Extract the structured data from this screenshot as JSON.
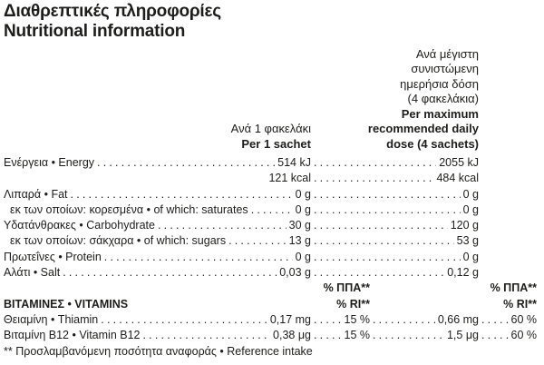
{
  "title": {
    "greek": "Διαθρεπτικές πληροφορίες",
    "english": "Nutritional information"
  },
  "columns": {
    "per_sachet": {
      "greek": "Ανά 1 φακελάκι",
      "english": "Per 1 sachet"
    },
    "per_max": {
      "greek_lines": [
        "Ανά μέγιστη",
        "συνιστώμενη",
        "ημερήσια δόση",
        "(4 φακελάκια)"
      ],
      "english_lines": [
        "Per maximum",
        "recommended daily",
        "dose (4 sachets)"
      ]
    }
  },
  "rows": [
    {
      "label": "Ενέργεια • Energy",
      "per_sachet": "514 kJ",
      "per_max": "2055 kJ"
    },
    {
      "label": "",
      "per_sachet": "121 kcal",
      "per_max": "484 kcal"
    },
    {
      "label": "Λιπαρά • Fat",
      "per_sachet": "0 g",
      "per_max": "0 g"
    },
    {
      "label": "εκ των οποίων: κορεσμένα • of which: saturates",
      "per_sachet": "0 g",
      "per_max": "0 g"
    },
    {
      "label": "Υδατάνθρακες • Carbohydrate",
      "per_sachet": "30 g",
      "per_max": "120 g"
    },
    {
      "label": "εκ των οποίων: σάκχαρα • of which: sugars",
      "per_sachet": "13 g",
      "per_max": "53 g"
    },
    {
      "label": "Πρωτεΐνες • Protein",
      "per_sachet": "0 g",
      "per_max": "0 g"
    },
    {
      "label": "Αλάτι • Salt",
      "per_sachet": "0,03 g",
      "per_max": "0,12 g"
    }
  ],
  "pct_headers": {
    "ppa": "% ΠΠΑ**",
    "ri": "% RI**"
  },
  "vitamins_section_label": "ΒΙΤΑΜΙΝΕΣ • VITAMINS",
  "vitamin_rows": [
    {
      "label": "Θειαμίνη • Thiamin",
      "per_sachet": "0,17 mg",
      "pct_sachet": "15 %",
      "per_max": "0,66 mg",
      "pct_max": "60 %"
    },
    {
      "label": "Βιταμίνη Β12 • Vitamin B12",
      "per_sachet": "0,38 μg",
      "pct_sachet": "15 %",
      "per_max": "1,5 μg",
      "pct_max": "60 %"
    }
  ],
  "footnote": "** Προσλαμβανόμενη ποσότητα αναφοράς • Reference intake",
  "colors": {
    "text": "#1d1d1b",
    "background": "#ffffff"
  }
}
